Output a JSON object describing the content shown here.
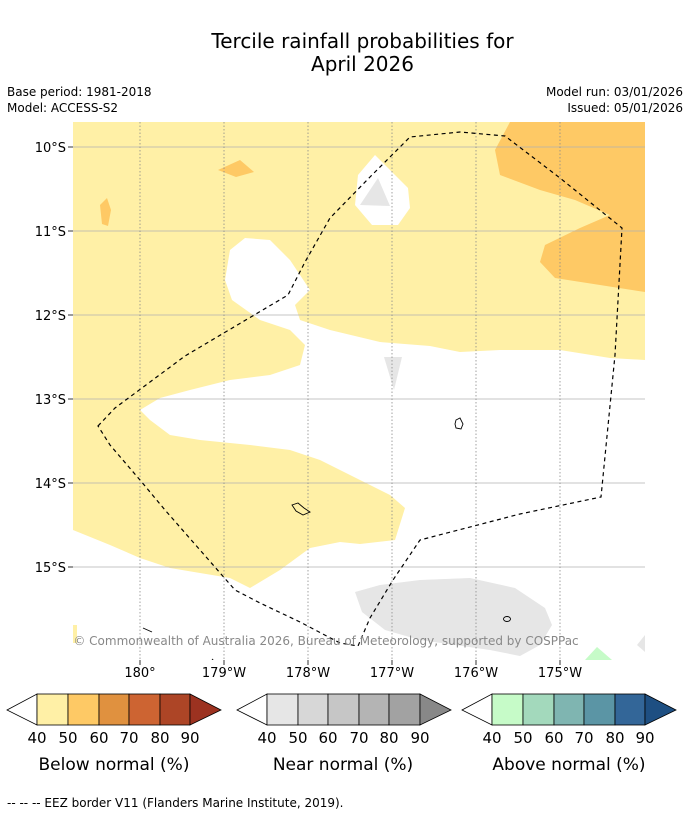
{
  "title_line1": "Tercile rainfall probabilities for",
  "title_line2": "April 2026",
  "base_period": "Base period: 1981-2018",
  "model": "Model: ACCESS-S2",
  "model_run": "Model run: 03/01/2026",
  "issued": "Issued: 05/01/2026",
  "latitude_labels": [
    "10°S",
    "11°S",
    "12°S",
    "13°S",
    "14°S",
    "15°S"
  ],
  "longitude_labels": [
    "180°",
    "179°W",
    "178°W",
    "177°W",
    "176°W",
    "175°W"
  ],
  "copyright": "© Commonwealth of Australia 2026, Bureau of Meteorology, supported by COSPPac",
  "colors": {
    "below": [
      "#fff0a6",
      "#fec965",
      "#e0913f",
      "#cd6432",
      "#ad4526",
      "#9c3220"
    ],
    "near": [
      "#e6e6e6",
      "#d7d7d7",
      "#c6c6c6",
      "#b4b4b4",
      "#a2a2a2",
      "#888888"
    ],
    "above": [
      "#c6fbc8",
      "#a3d9bc",
      "#7fb5b1",
      "#5b95a5",
      "#336698",
      "#1e4f82"
    ]
  },
  "legends": [
    {
      "title": "Below normal (%)",
      "ticks": [
        "40",
        "50",
        "60",
        "70",
        "80",
        "90"
      ]
    },
    {
      "title": "Near normal (%)",
      "ticks": [
        "40",
        "50",
        "60",
        "70",
        "80",
        "90"
      ]
    },
    {
      "title": "Above normal (%)",
      "ticks": [
        "40",
        "50",
        "60",
        "70",
        "80",
        "90"
      ]
    }
  ],
  "footnote": "--  --  -- EEZ border V11 (Flanders Marine Institute, 2019)."
}
